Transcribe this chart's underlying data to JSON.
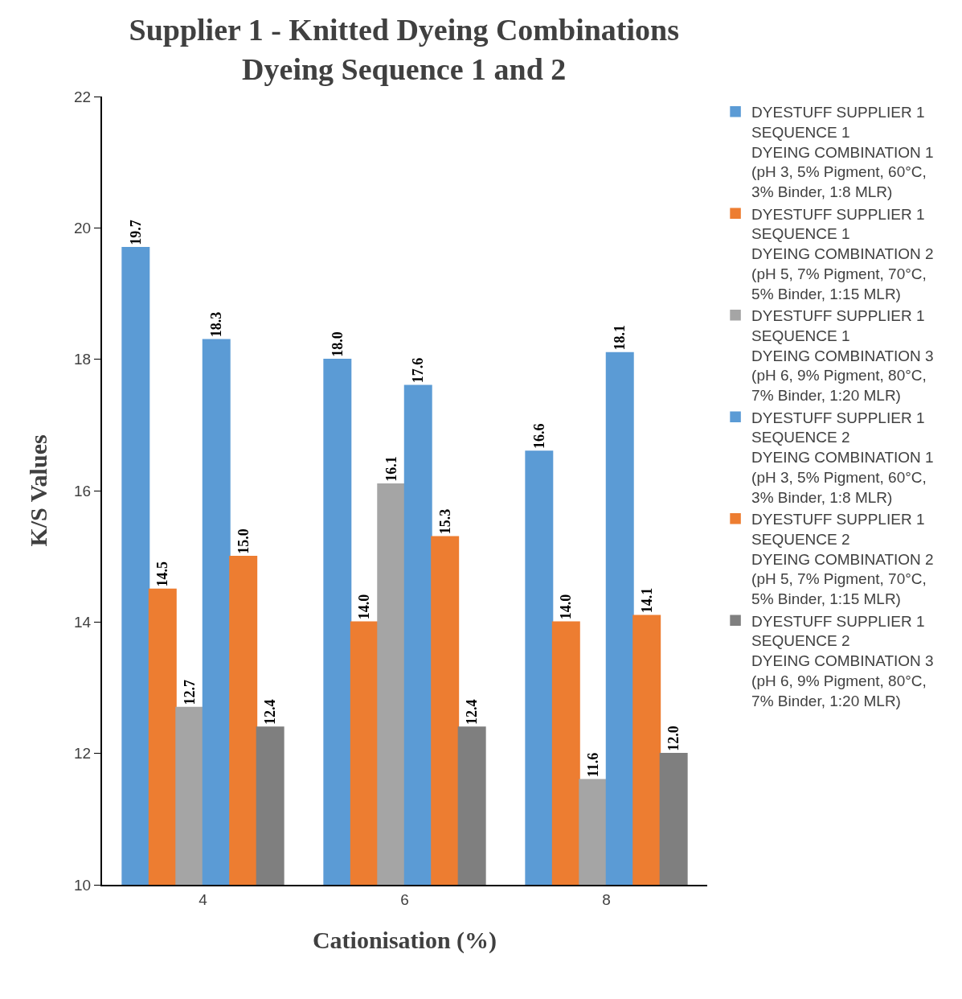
{
  "chart_data": {
    "type": "bar",
    "title": "Supplier 1 - Knitted Dyeing Combinations\nDyeing Sequence 1 and 2",
    "xlabel": "Cationisation (%)",
    "ylabel": "K/S Values",
    "categories": [
      "4",
      "6",
      "8"
    ],
    "ylim": [
      10,
      22
    ],
    "yticks": [
      10,
      12,
      14,
      16,
      18,
      20,
      22
    ],
    "grid": false,
    "legend": "right",
    "series": [
      {
        "name": "DYESTUFF SUPPLIER 1\nSEQUENCE 1\nDYEING COMBINATION 1\n(pH 3, 5% Pigment, 60°C,\n3% Binder, 1:8 MLR)",
        "color": "#5b9bd5",
        "values": [
          19.7,
          18.0,
          16.6
        ],
        "value_labels": [
          "19.7",
          "18.0",
          "16.6"
        ]
      },
      {
        "name": "DYESTUFF SUPPLIER 1\nSEQUENCE 1\nDYEING COMBINATION 2\n(pH 5, 7% Pigment, 70°C,\n5% Binder, 1:15 MLR)",
        "color": "#ed7d31",
        "values": [
          14.5,
          14.0,
          14.0
        ],
        "value_labels": [
          "14.5",
          "14.0",
          "14.0"
        ]
      },
      {
        "name": "DYESTUFF SUPPLIER 1\nSEQUENCE 1\nDYEING COMBINATION 3\n(pH 6, 9% Pigment, 80°C,\n7% Binder, 1:20 MLR)",
        "color": "#a5a5a5",
        "values": [
          12.7,
          16.1,
          11.6
        ],
        "value_labels": [
          "12.7",
          "16.1",
          "11.6"
        ]
      },
      {
        "name": "DYESTUFF SUPPLIER 1\nSEQUENCE 2\nDYEING COMBINATION 1\n(pH 3, 5% Pigment, 60°C,\n3% Binder, 1:8 MLR)",
        "color": "#5b9bd5",
        "values": [
          18.3,
          17.6,
          18.1
        ],
        "value_labels": [
          "18.3",
          "17.6",
          "18.1"
        ]
      },
      {
        "name": "DYESTUFF SUPPLIER 1\nSEQUENCE 2\nDYEING COMBINATION 2\n(pH 5, 7% Pigment, 70°C,\n5% Binder, 1:15 MLR)",
        "color": "#ed7d31",
        "values": [
          15.0,
          15.3,
          14.1
        ],
        "value_labels": [
          "15.0",
          "15.3",
          "14.1"
        ]
      },
      {
        "name": "DYESTUFF SUPPLIER 1\nSEQUENCE 2\nDYEING COMBINATION 3\n(pH 6, 9% Pigment, 80°C,\n7% Binder, 1:20 MLR)",
        "color": "#7f7f7f",
        "values": [
          12.4,
          12.4,
          12.0
        ],
        "value_labels": [
          "12.4",
          "12.4",
          "12.0"
        ]
      }
    ]
  }
}
